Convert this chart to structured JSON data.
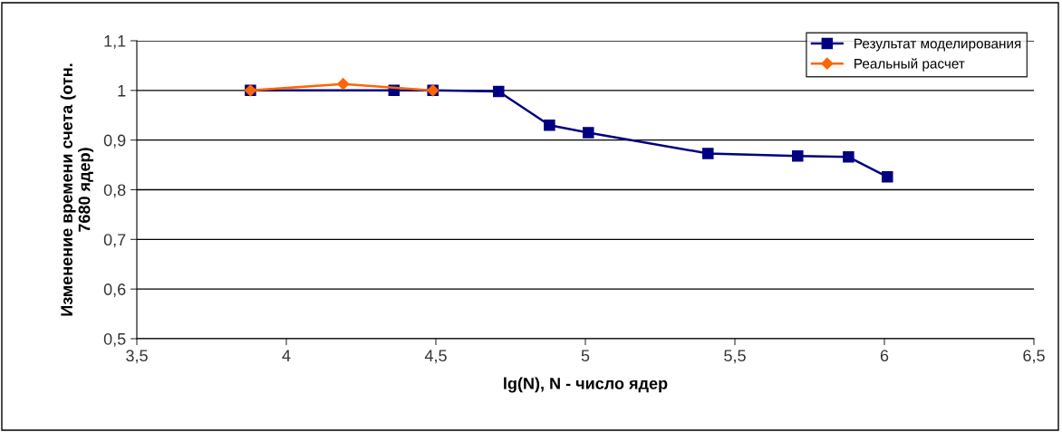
{
  "chart_data": {
    "type": "line",
    "xlabel": "lg(N), N - число ядер",
    "ylabel": "Изменение времени счета (отн.\n7680 ядер)",
    "xlim": [
      3.5,
      6.5
    ],
    "xticks": [
      {
        "value": 3.5,
        "label": "3,5"
      },
      4,
      {
        "value": 4.5,
        "label": "4,5"
      },
      5,
      {
        "value": 5.5,
        "label": "5,5"
      },
      6,
      {
        "value": 6.5,
        "label": "6,5"
      }
    ],
    "ylim": [
      0.5,
      1.1
    ],
    "yticks": [
      {
        "value": 0.5,
        "label": "0,5"
      },
      {
        "value": 0.6,
        "label": "0,6"
      },
      {
        "value": 0.7,
        "label": "0,7"
      },
      {
        "value": 0.8,
        "label": "0,8"
      },
      {
        "value": 0.9,
        "label": "0,9"
      },
      {
        "value": 1,
        "label": "1"
      },
      {
        "value": 1.1,
        "label": "1,1"
      }
    ],
    "grid": "y",
    "legend": "top right",
    "series": [
      {
        "name": "Результат моделирования",
        "color": "#000080",
        "marker": "square",
        "x": [
          3.88,
          4.36,
          4.49,
          4.71,
          4.88,
          5.01,
          5.41,
          5.71,
          5.88,
          6.01
        ],
        "values": [
          1.0,
          1.0,
          1.0,
          0.998,
          0.93,
          0.915,
          0.873,
          0.868,
          0.866,
          0.826
        ]
      },
      {
        "name": "Реальный расчет",
        "color": "#ff6600",
        "marker": "diamond",
        "x": [
          3.88,
          4.19,
          4.49
        ],
        "values": [
          1.0,
          1.013,
          1.0
        ]
      }
    ]
  }
}
